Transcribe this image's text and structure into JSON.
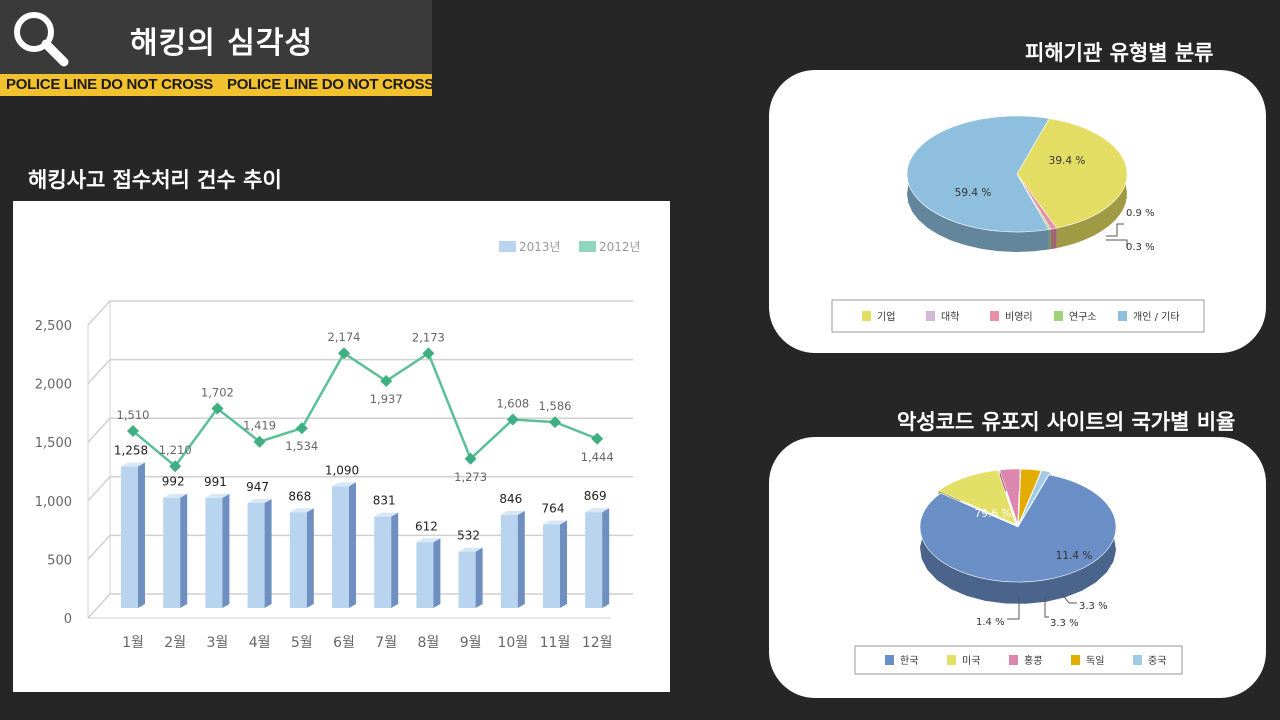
{
  "header": {
    "title": "해킹의 심각성",
    "tape_text": [
      "POLICE LINE DO NOT CROSS",
      "POLICE LINE DO NOT CROSS"
    ]
  },
  "colors": {
    "background": "#262626",
    "tape": "#f2c12e",
    "bar": "#b8d4ee",
    "line": "#5bbf98"
  },
  "left_section": {
    "title": "해킹사고 접수처리 건수 추이"
  },
  "right_top": {
    "title": "피해기관 유형별 분류"
  },
  "right_bottom": {
    "title": "악성코드 유포지 사이트의 국가별 비율"
  },
  "chart_data": [
    {
      "type": "bar",
      "categories": [
        "1월",
        "2월",
        "3월",
        "4월",
        "5월",
        "6월",
        "7월",
        "8월",
        "9월",
        "10월",
        "11월",
        "12월"
      ],
      "series": [
        {
          "name": "2013년",
          "type": "bar",
          "values": [
            1258,
            992,
            991,
            947,
            868,
            1090,
            831,
            612,
            532,
            846,
            764,
            869
          ],
          "labels": [
            "1,258",
            "992",
            "991",
            "947",
            "868",
            "1,090",
            "831",
            "612",
            "532",
            "846",
            "764",
            "869"
          ]
        },
        {
          "name": "2012년",
          "type": "line",
          "values": [
            1510,
            1210,
            1702,
            1419,
            1534,
            2174,
            1937,
            2173,
            1273,
            1608,
            1586,
            1444
          ],
          "labels": [
            "1,510",
            "1,210",
            "1,702",
            "1,419",
            "1,534",
            "2,174",
            "1,937",
            "2,173",
            "1,273",
            "1,608",
            "1,586",
            "1,444"
          ]
        }
      ],
      "ylim": [
        0,
        2500
      ],
      "yticks": [
        "0",
        "500",
        "1,000",
        "1,500",
        "2,000",
        "2,500"
      ],
      "grid": true,
      "legend": "top-right"
    },
    {
      "type": "pie",
      "labels": [
        "기업",
        "대학",
        "비영리",
        "연구소",
        "개인 / 기타"
      ],
      "values": [
        39.4,
        0.0,
        0.9,
        0.3,
        59.4
      ],
      "value_labels": [
        "39.4 %",
        "",
        "0.9 %",
        "0.3 %",
        "59.4 %"
      ],
      "colors": [
        "#e3dd63",
        "#d5b8d8",
        "#e98fa8",
        "#9fd27a",
        "#8fbfdf"
      ],
      "legend": "bottom"
    },
    {
      "type": "pie",
      "labels": [
        "한국",
        "미국",
        "홍콩",
        "독일",
        "중국"
      ],
      "values": [
        79.6,
        11.4,
        3.3,
        3.3,
        1.4
      ],
      "value_labels": [
        "79.6 %",
        "11.4 %",
        "3.3 %",
        "3.3 %",
        "1.4 %"
      ],
      "colors": [
        "#6a8fc6",
        "#e3e067",
        "#dd86ae",
        "#e3ac00",
        "#9fcbe6"
      ],
      "legend": "bottom"
    }
  ]
}
